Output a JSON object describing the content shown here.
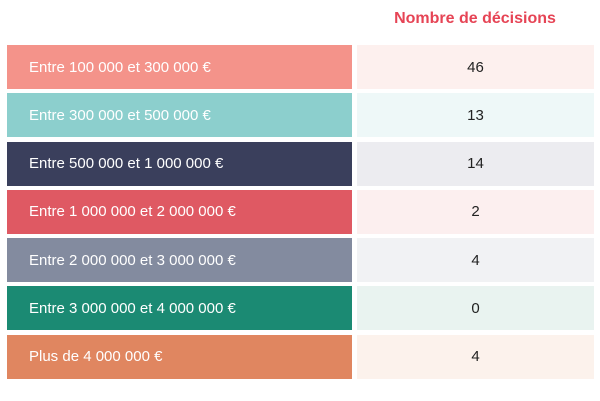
{
  "chart_data": {
    "type": "table",
    "column_header": "Nombre de décisions",
    "header_color": "#e64455",
    "rows": [
      {
        "label": "Entre 100 000 et 300 000 €",
        "value": "46",
        "color": "#f4938a",
        "tint": "#fdf0ee"
      },
      {
        "label": "Entre 300 000 et 500 000 €",
        "value": "13",
        "color": "#8ccfcd",
        "tint": "#eef8f8"
      },
      {
        "label": "Entre 500 000 et 1 000 000 €",
        "value": "14",
        "color": "#3a3f5c",
        "tint": "#ececf0"
      },
      {
        "label": "Entre 1 000 000 et 2 000 000 €",
        "value": "2",
        "color": "#df5963",
        "tint": "#fcefef"
      },
      {
        "label": "Entre 2 000 000 et 3 000 000 €",
        "value": "4",
        "color": "#838b9f",
        "tint": "#f1f2f4"
      },
      {
        "label": "Entre 3 000 000 et 4 000 000 €",
        "value": "0",
        "color": "#1b8a73",
        "tint": "#e9f3f0"
      },
      {
        "label": "Plus de 4 000 000 €",
        "value": "4",
        "color": "#e08660",
        "tint": "#fcf2ec"
      }
    ]
  }
}
